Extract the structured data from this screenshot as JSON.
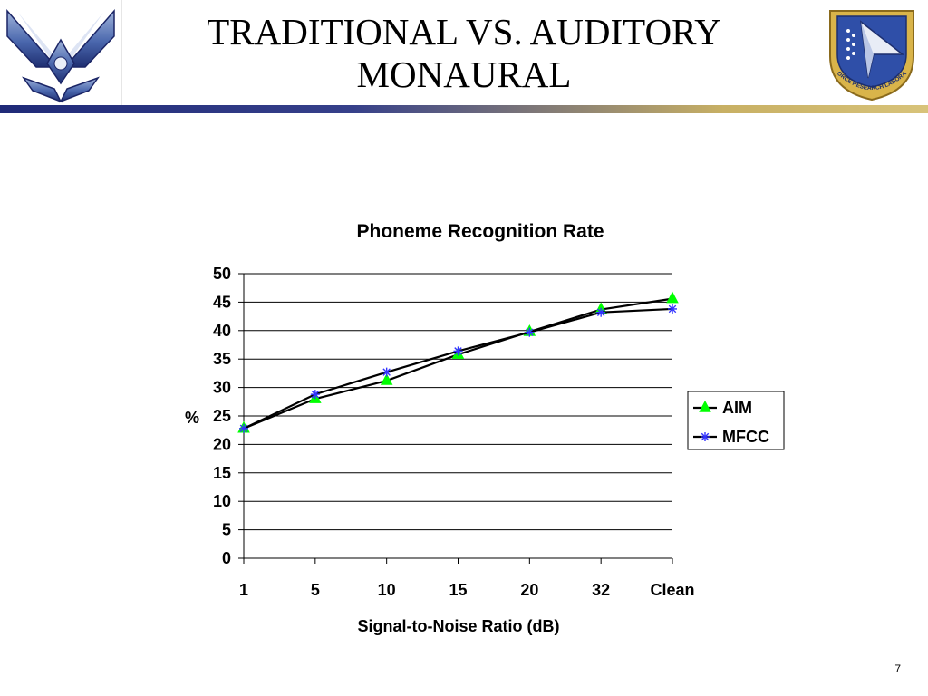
{
  "slide": {
    "title_line1": "TRADITIONAL VS. AUDITORY",
    "title_line2": "MONAURAL",
    "page_number": "7"
  },
  "logos": {
    "left": "air-force-wings-logo",
    "right": "air-force-research-laboratory-shield",
    "right_badge_text": "AIR FORCE RESEARCH LABORATORY"
  },
  "colors": {
    "title_bar_start": "#1f2a78",
    "title_bar_end": "#d8c37a",
    "aim": "#00ff00",
    "mfcc": "#3333ff",
    "line": "#000000"
  },
  "chart_data": {
    "type": "line",
    "title": "Phoneme Recognition Rate",
    "xlabel": "Signal-to-Noise Ratio (dB)",
    "ylabel": "%",
    "categories": [
      "1",
      "5",
      "10",
      "15",
      "20",
      "32",
      "Clean"
    ],
    "ylim": [
      0,
      50
    ],
    "yticks": [
      0,
      5,
      10,
      15,
      20,
      25,
      30,
      35,
      40,
      45,
      50
    ],
    "grid": true,
    "legend_position": "right",
    "series": [
      {
        "name": "AIM",
        "marker": "triangle",
        "values": [
          22.8,
          28.0,
          31.2,
          35.8,
          39.8,
          43.7,
          45.6
        ]
      },
      {
        "name": "MFCC",
        "marker": "asterisk",
        "values": [
          22.8,
          28.8,
          32.7,
          36.4,
          39.7,
          43.2,
          43.8
        ]
      }
    ]
  }
}
